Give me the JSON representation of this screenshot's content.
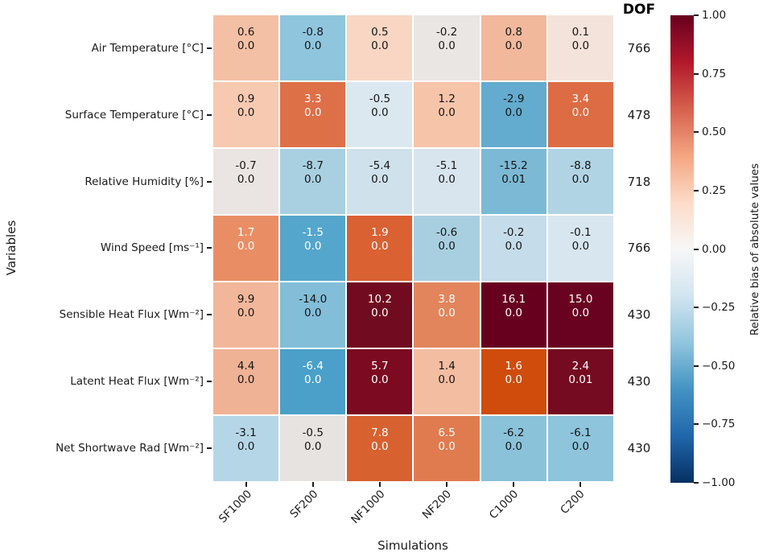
{
  "chart_data": {
    "type": "heatmap",
    "xlabel": "Simulations",
    "ylabel": "Variables",
    "dof_header": "DOF",
    "cell_content": [
      "relative bias value (top line)",
      "p-value (bottom line)"
    ],
    "columns": [
      "SF1000",
      "SF200",
      "NF1000",
      "NF200",
      "C1000",
      "C200"
    ],
    "rows": [
      {
        "label": "Air Temperature [°C]",
        "dof": "766",
        "cells": [
          {
            "v": "0.6",
            "p": "0.0",
            "bg": "#f4c0a5",
            "fg": "#151515"
          },
          {
            "v": "-0.8",
            "p": "0.0",
            "bg": "#8fc5dd",
            "fg": "#151515"
          },
          {
            "v": "0.5",
            "p": "0.0",
            "bg": "#f8d6c3",
            "fg": "#151515"
          },
          {
            "v": "-0.2",
            "p": "0.0",
            "bg": "#e9e6e4",
            "fg": "#151515"
          },
          {
            "v": "0.8",
            "p": "0.0",
            "bg": "#f1b89c",
            "fg": "#151515"
          },
          {
            "v": "0.1",
            "p": "0.0",
            "bg": "#f4e3da",
            "fg": "#151515"
          }
        ]
      },
      {
        "label": "Surface Temperature [°C]",
        "dof": "478",
        "cells": [
          {
            "v": "0.9",
            "p": "0.0",
            "bg": "#f7c9b0",
            "fg": "#151515"
          },
          {
            "v": "3.3",
            "p": "0.0",
            "bg": "#de7048",
            "fg": "#ffffff"
          },
          {
            "v": "-0.5",
            "p": "0.0",
            "bg": "#dbe8f0",
            "fg": "#151515"
          },
          {
            "v": "1.2",
            "p": "0.0",
            "bg": "#f6c4a9",
            "fg": "#151515"
          },
          {
            "v": "-2.9",
            "p": "0.0",
            "bg": "#63abcf",
            "fg": "#151515"
          },
          {
            "v": "3.4",
            "p": "0.0",
            "bg": "#dd6c44",
            "fg": "#ffffff"
          }
        ]
      },
      {
        "label": "Relative Humidity [%]",
        "dof": "718",
        "cells": [
          {
            "v": "-0.7",
            "p": "0.0",
            "bg": "#eae5e2",
            "fg": "#151515"
          },
          {
            "v": "-8.7",
            "p": "0.0",
            "bg": "#a9d0e1",
            "fg": "#151515"
          },
          {
            "v": "-5.4",
            "p": "0.0",
            "bg": "#cfe2ec",
            "fg": "#151515"
          },
          {
            "v": "-5.1",
            "p": "0.0",
            "bg": "#d9e5ee",
            "fg": "#151515"
          },
          {
            "v": "-15.2",
            "p": "0.01",
            "bg": "#7cb9d5",
            "fg": "#151515"
          },
          {
            "v": "-8.8",
            "p": "0.0",
            "bg": "#b0d4e4",
            "fg": "#151515"
          }
        ]
      },
      {
        "label": "Wind Speed [ms⁻¹]",
        "dof": "766",
        "cells": [
          {
            "v": "1.7",
            "p": "0.0",
            "bg": "#e98e64",
            "fg": "#ffffff"
          },
          {
            "v": "-1.5",
            "p": "0.0",
            "bg": "#55a6cc",
            "fg": "#ffffff"
          },
          {
            "v": "1.9",
            "p": "0.0",
            "bg": "#da6132",
            "fg": "#ffffff"
          },
          {
            "v": "-0.6",
            "p": "0.0",
            "bg": "#a8cfe0",
            "fg": "#151515"
          },
          {
            "v": "-0.2",
            "p": "0.0",
            "bg": "#c5dcea",
            "fg": "#151515"
          },
          {
            "v": "-0.1",
            "p": "0.0",
            "bg": "#d8e6ef",
            "fg": "#151515"
          }
        ]
      },
      {
        "label": "Sensible Heat Flux [Wm⁻²]",
        "dof": "430",
        "cells": [
          {
            "v": "9.9",
            "p": "0.0",
            "bg": "#f2b79a",
            "fg": "#151515"
          },
          {
            "v": "-14.0",
            "p": "0.0",
            "bg": "#82bed8",
            "fg": "#151515"
          },
          {
            "v": "10.2",
            "p": "0.0",
            "bg": "#710c20",
            "fg": "#ffffff"
          },
          {
            "v": "3.8",
            "p": "0.0",
            "bg": "#e2855c",
            "fg": "#ffffff"
          },
          {
            "v": "16.1",
            "p": "0.0",
            "bg": "#67001f",
            "fg": "#ffffff"
          },
          {
            "v": "15.0",
            "p": "0.0",
            "bg": "#690220",
            "fg": "#ffffff"
          }
        ]
      },
      {
        "label": "Latent Heat Flux [Wm⁻²]",
        "dof": "430",
        "cells": [
          {
            "v": "4.4",
            "p": "0.0",
            "bg": "#f0b295",
            "fg": "#151515"
          },
          {
            "v": "-6.4",
            "p": "0.0",
            "bg": "#4aa0c8",
            "fg": "#ffffff"
          },
          {
            "v": "5.7",
            "p": "0.0",
            "bg": "#7c0a21",
            "fg": "#ffffff"
          },
          {
            "v": "1.4",
            "p": "0.0",
            "bg": "#f3bda1",
            "fg": "#151515"
          },
          {
            "v": "1.6",
            "p": "0.0",
            "bg": "#cf4c0c",
            "fg": "#ffffff"
          },
          {
            "v": "2.4",
            "p": "0.01",
            "bg": "#750b20",
            "fg": "#ffffff"
          }
        ]
      },
      {
        "label": "Net Shortwave Rad [Wm⁻²]",
        "dof": "430",
        "cells": [
          {
            "v": "-3.1",
            "p": "0.0",
            "bg": "#b5d6e7",
            "fg": "#151515"
          },
          {
            "v": "-0.5",
            "p": "0.0",
            "bg": "#e6e3e0",
            "fg": "#151515"
          },
          {
            "v": "7.8",
            "p": "0.0",
            "bg": "#d7612f",
            "fg": "#ffffff"
          },
          {
            "v": "6.5",
            "p": "0.0",
            "bg": "#e07b50",
            "fg": "#ffffff"
          },
          {
            "v": "-6.2",
            "p": "0.0",
            "bg": "#8ac2da",
            "fg": "#151515"
          },
          {
            "v": "-6.1",
            "p": "0.0",
            "bg": "#8ec4dc",
            "fg": "#151515"
          }
        ]
      }
    ],
    "colorbar": {
      "label": "Relative bias of absolute values",
      "ticks": [
        "1.00",
        "0.75",
        "0.50",
        "0.25",
        "0.00",
        "−0.25",
        "−0.50",
        "−0.75",
        "−1.00"
      ],
      "range": [
        -1.0,
        1.0
      ],
      "palette_top_to_bottom": [
        "#67001f",
        "#b2182b",
        "#d6604d",
        "#f4a582",
        "#fddbc7",
        "#f7f7f7",
        "#d1e5f0",
        "#92c5de",
        "#4393c3",
        "#2166ac",
        "#053061"
      ]
    },
    "layout": {
      "grid_lines": "white 2px between cells",
      "legend_position": "right colorbar",
      "x_tick_rotation_deg": 45
    }
  }
}
